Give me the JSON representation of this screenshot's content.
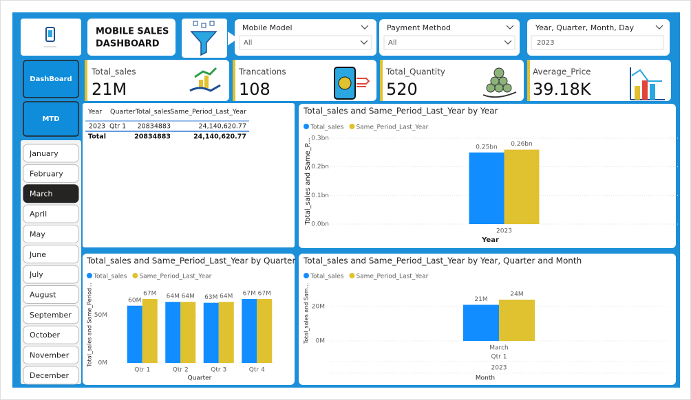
{
  "header": {
    "title_line1": "MOBILE SALES",
    "title_line2": "DASHBOARD"
  },
  "nav": {
    "buttons": [
      "DashBoard",
      "MTD"
    ],
    "months": [
      "January",
      "February",
      "March",
      "April",
      "May",
      "June",
      "July",
      "August",
      "September",
      "October",
      "November",
      "December"
    ],
    "selected_month": "March"
  },
  "slicers": [
    {
      "label": "Mobile Model",
      "value": "All"
    },
    {
      "label": "Payment Method",
      "value": "All"
    },
    {
      "label": "Year, Quarter, Month, Day",
      "value": "2023"
    }
  ],
  "kpis": [
    {
      "label": "Total_sales",
      "value": "21M"
    },
    {
      "label": "Trancations",
      "value": "108"
    },
    {
      "label": "Total_Quantity",
      "value": "520"
    },
    {
      "label": "Average_Price",
      "value": "39.18K"
    }
  ],
  "table": {
    "columns": [
      "Year",
      "Quarter",
      "Total_sales",
      "Same_Period_Last_Year"
    ],
    "rows": [
      [
        "2023",
        "Qtr 1",
        "20834883",
        "24,140,620.77"
      ]
    ],
    "total": {
      "label": "Total",
      "values": [
        "20834883",
        "24,140,620.77"
      ]
    }
  },
  "chart_data": [
    {
      "type": "bar",
      "title": "Total_sales and Same_Period_Last_Year by Year",
      "x_label": "Year",
      "y_label": "Total_sales and Same_P...",
      "categories": [
        "2023"
      ],
      "series": [
        {
          "name": "Total_sales",
          "color": "#118dff",
          "values": [
            0.25
          ],
          "value_labels": [
            "0.25bn"
          ]
        },
        {
          "name": "Same_Period_Last_Year",
          "color": "#e0c12f",
          "values": [
            0.26
          ],
          "value_labels": [
            "0.26bn"
          ]
        }
      ],
      "ylim": [
        0,
        0.3
      ],
      "yticks": [
        {
          "value": 0,
          "label": "0.0bn"
        },
        {
          "value": 0.1,
          "label": "0.1bn"
        },
        {
          "value": 0.2,
          "label": "0.2bn"
        },
        {
          "value": 0.3,
          "label": "0.3bn"
        }
      ],
      "grid": true
    },
    {
      "type": "bar",
      "title": "Total_sales and Same_Period_Last_Year by Quarter",
      "x_label": "Quarter",
      "y_label": "Total_sales and Same_Period...",
      "categories": [
        "Qtr 1",
        "Qtr 2",
        "Qtr 3",
        "Qtr 4"
      ],
      "series": [
        {
          "name": "Total_sales",
          "color": "#118dff",
          "values": [
            60,
            64,
            63,
            67
          ],
          "value_labels": [
            "60M",
            "64M",
            "63M",
            "67M"
          ]
        },
        {
          "name": "Same_Period_Last_Year",
          "color": "#e0c12f",
          "values": [
            67,
            64,
            64,
            67
          ],
          "value_labels": [
            "67M",
            "64M",
            "64M",
            "67M"
          ]
        }
      ],
      "ylim": [
        0,
        80
      ],
      "yticks": [
        {
          "value": 0,
          "label": "0M"
        },
        {
          "value": 50,
          "label": "50M"
        }
      ],
      "grid": true
    },
    {
      "type": "bar",
      "title": "Total_sales and Same_Period_Last_Year by Year, Quarter and Month",
      "x_label": "Month",
      "y_label": "Total_sales and Sam...",
      "categories": [
        "March"
      ],
      "category_quarters": [
        "Qtr 1"
      ],
      "category_years": [
        "2023"
      ],
      "series": [
        {
          "name": "Total_sales",
          "color": "#118dff",
          "values": [
            21
          ],
          "value_labels": [
            "21M"
          ]
        },
        {
          "name": "Same_Period_Last_Year",
          "color": "#e0c12f",
          "values": [
            24
          ],
          "value_labels": [
            "24M"
          ]
        }
      ],
      "ylim": [
        0,
        32
      ],
      "yticks": [
        {
          "value": 0,
          "label": "0M"
        },
        {
          "value": 20,
          "label": "20M"
        }
      ],
      "grid": true
    }
  ]
}
